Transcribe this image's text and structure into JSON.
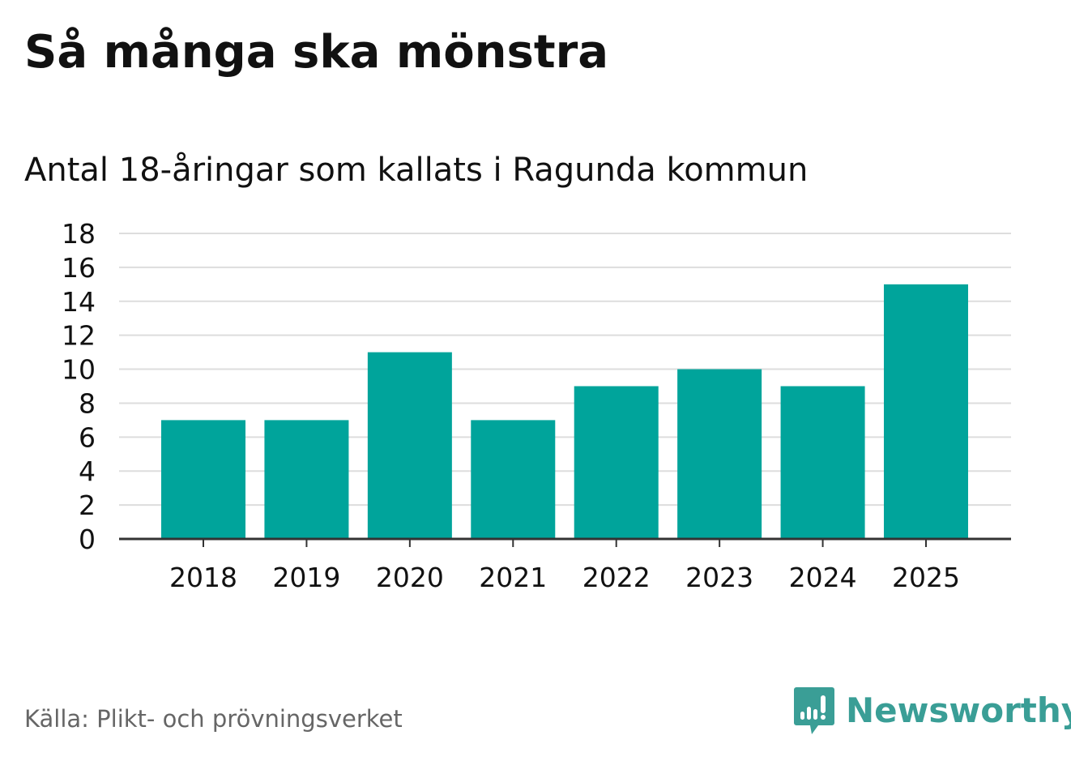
{
  "colors": {
    "bar": "#00A49B",
    "grid": "#DDDDDD",
    "axis": "#333333",
    "text": "#111111",
    "source_text": "#666666",
    "brand": "#3A9E96"
  },
  "header": {
    "title": "Så många ska mönstra"
  },
  "footer": {
    "source": "Källa: Plikt- och prövningsverket",
    "brand_name": "Newsworthy",
    "brand_icon": "newsworthy-logo-icon"
  },
  "chart_data": {
    "type": "bar",
    "title": "Så många ska mönstra",
    "subtitle": "Antal 18-åringar som kallats i Ragunda kommun",
    "xlabel": "",
    "ylabel": "",
    "categories": [
      "2018",
      "2019",
      "2020",
      "2021",
      "2022",
      "2023",
      "2024",
      "2025"
    ],
    "values": [
      7,
      7,
      11,
      7,
      9,
      10,
      9,
      15
    ],
    "ylim": [
      0,
      18
    ],
    "yticks": [
      0,
      2,
      4,
      6,
      8,
      10,
      12,
      14,
      16,
      18
    ],
    "grid": true,
    "legend": "none"
  }
}
